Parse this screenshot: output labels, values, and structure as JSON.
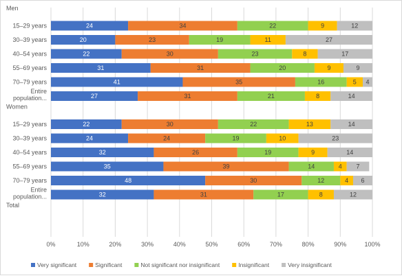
{
  "chart_data": {
    "type": "bar",
    "stacked": true,
    "percent": true,
    "orientation": "horizontal",
    "title": "",
    "xlabel": "",
    "ylabel": "",
    "xlim": [
      0,
      100
    ],
    "x_ticks": [
      "0%",
      "10%",
      "20%",
      "30%",
      "40%",
      "50%",
      "60%",
      "70%",
      "80%",
      "90%",
      "100%"
    ],
    "grid": true,
    "legend_position": "bottom",
    "series": [
      {
        "name": "Very significant",
        "color": "#4472c4"
      },
      {
        "name": "Significant",
        "color": "#ed7d31"
      },
      {
        "name": "Not significant nor insignificant",
        "color": "#92d050"
      },
      {
        "name": "Insignificant",
        "color": "#ffc000"
      },
      {
        "name": "Very insignificant",
        "color": "#bfbfbf"
      }
    ],
    "groups": [
      {
        "label": "Men",
        "rows": [
          {
            "label": "15–29 years",
            "values": [
              24,
              34,
              22,
              9,
              12
            ]
          },
          {
            "label": "30–39 years",
            "values": [
              20,
              23,
              19,
              11,
              27
            ]
          },
          {
            "label": "40–54 years",
            "values": [
              22,
              30,
              23,
              8,
              17
            ]
          },
          {
            "label": "55–69 years",
            "values": [
              31,
              31,
              20,
              9,
              9
            ]
          },
          {
            "label": "70–79 years",
            "values": [
              41,
              35,
              16,
              5,
              4
            ]
          },
          {
            "label": "Entire population...",
            "label_lines": [
              "Entire",
              "population..."
            ],
            "values": [
              27,
              31,
              21,
              8,
              14
            ]
          }
        ]
      },
      {
        "label": "Women",
        "rows": [
          {
            "label": "15–29 years",
            "values": [
              22,
              30,
              22,
              13,
              14
            ]
          },
          {
            "label": "30–39 years",
            "values": [
              24,
              24,
              19,
              10,
              23
            ]
          },
          {
            "label": "40–54 years",
            "values": [
              32,
              26,
              19,
              9,
              14
            ]
          },
          {
            "label": "55–69 years",
            "values": [
              35,
              39,
              14,
              4,
              7
            ]
          },
          {
            "label": "70–79 years",
            "values": [
              48,
              30,
              12,
              4,
              6
            ]
          },
          {
            "label": "Entire population...",
            "label_lines": [
              "Entire",
              "population..."
            ],
            "values": [
              32,
              31,
              17,
              8,
              12
            ]
          }
        ]
      },
      {
        "label": "Total",
        "rows": []
      }
    ]
  }
}
